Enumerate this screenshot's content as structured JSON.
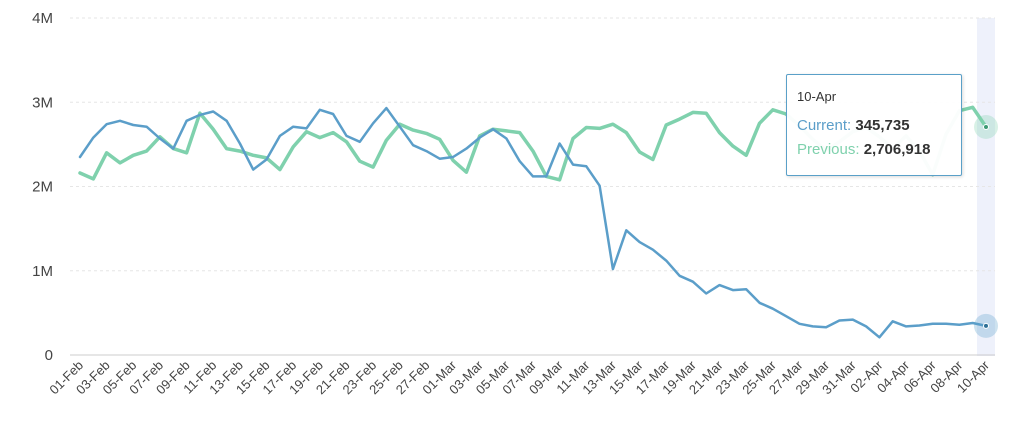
{
  "chart_data": {
    "type": "line",
    "x": [
      "01-Feb",
      "02-Feb",
      "03-Feb",
      "04-Feb",
      "05-Feb",
      "06-Feb",
      "07-Feb",
      "08-Feb",
      "09-Feb",
      "10-Feb",
      "11-Feb",
      "12-Feb",
      "13-Feb",
      "14-Feb",
      "15-Feb",
      "16-Feb",
      "17-Feb",
      "18-Feb",
      "19-Feb",
      "20-Feb",
      "21-Feb",
      "22-Feb",
      "23-Feb",
      "24-Feb",
      "25-Feb",
      "26-Feb",
      "27-Feb",
      "28-Feb",
      "01-Mar",
      "02-Mar",
      "03-Mar",
      "04-Mar",
      "05-Mar",
      "06-Mar",
      "07-Mar",
      "08-Mar",
      "09-Mar",
      "10-Mar",
      "11-Mar",
      "12-Mar",
      "13-Mar",
      "14-Mar",
      "15-Mar",
      "16-Mar",
      "17-Mar",
      "18-Mar",
      "19-Mar",
      "20-Mar",
      "21-Mar",
      "22-Mar",
      "23-Mar",
      "24-Mar",
      "25-Mar",
      "26-Mar",
      "27-Mar",
      "28-Mar",
      "29-Mar",
      "30-Mar",
      "31-Mar",
      "01-Apr",
      "02-Apr",
      "03-Apr",
      "04-Apr",
      "05-Apr",
      "06-Apr",
      "07-Apr",
      "08-Apr",
      "09-Apr",
      "10-Apr"
    ],
    "xticks": [
      "01-Feb",
      "03-Feb",
      "05-Feb",
      "07-Feb",
      "09-Feb",
      "11-Feb",
      "13-Feb",
      "15-Feb",
      "17-Feb",
      "19-Feb",
      "21-Feb",
      "23-Feb",
      "25-Feb",
      "27-Feb",
      "01-Mar",
      "03-Mar",
      "05-Mar",
      "07-Mar",
      "09-Mar",
      "11-Mar",
      "13-Mar",
      "15-Mar",
      "17-Mar",
      "19-Mar",
      "21-Mar",
      "23-Mar",
      "25-Mar",
      "27-Mar",
      "29-Mar",
      "31-Mar",
      "02-Apr",
      "04-Apr",
      "06-Apr",
      "08-Apr",
      "10-Apr"
    ],
    "yticks": [
      {
        "value": 0,
        "label": "0"
      },
      {
        "value": 1000000,
        "label": "1M"
      },
      {
        "value": 2000000,
        "label": "2M"
      },
      {
        "value": 3000000,
        "label": "3M"
      },
      {
        "value": 4000000,
        "label": "4M"
      }
    ],
    "ylim": [
      0,
      4000000
    ],
    "grid": true,
    "series": [
      {
        "name": "Current",
        "color": "#5b9ec9",
        "values": [
          2350000,
          2580000,
          2740000,
          2780000,
          2730000,
          2710000,
          2570000,
          2450000,
          2780000,
          2850000,
          2890000,
          2780000,
          2510000,
          2200000,
          2320000,
          2600000,
          2710000,
          2690000,
          2910000,
          2860000,
          2600000,
          2530000,
          2750000,
          2930000,
          2710000,
          2490000,
          2420000,
          2330000,
          2350000,
          2450000,
          2580000,
          2680000,
          2570000,
          2300000,
          2120000,
          2120000,
          2510000,
          2260000,
          2240000,
          2010000,
          1020000,
          1480000,
          1340000,
          1250000,
          1120000,
          940000,
          870000,
          730000,
          830000,
          770000,
          780000,
          620000,
          550000,
          460000,
          370000,
          340000,
          330000,
          410000,
          420000,
          340000,
          210000,
          400000,
          340000,
          350000,
          370000,
          370000,
          360000,
          380000,
          345735
        ]
      },
      {
        "name": "Previous",
        "color": "#7fd1ad",
        "values": [
          2160000,
          2090000,
          2400000,
          2280000,
          2370000,
          2420000,
          2590000,
          2450000,
          2400000,
          2870000,
          2680000,
          2450000,
          2420000,
          2370000,
          2340000,
          2200000,
          2470000,
          2650000,
          2580000,
          2640000,
          2530000,
          2300000,
          2230000,
          2550000,
          2740000,
          2670000,
          2630000,
          2560000,
          2310000,
          2170000,
          2600000,
          2680000,
          2660000,
          2640000,
          2420000,
          2120000,
          2080000,
          2570000,
          2700000,
          2690000,
          2740000,
          2640000,
          2410000,
          2320000,
          2730000,
          2800000,
          2880000,
          2870000,
          2640000,
          2480000,
          2370000,
          2750000,
          2910000,
          2860000,
          2720000,
          2560000,
          2430000,
          2530000,
          2650000,
          2700000,
          2590000,
          2450000,
          2600000,
          2420000,
          2140000,
          2620000,
          2900000,
          2940000,
          2706918
        ]
      }
    ],
    "hover_index": 68
  },
  "tooltip": {
    "date": "10-Apr",
    "current_label": "Current:",
    "current_value": "345,735",
    "previous_label": "Previous:",
    "previous_value": "2,706,918"
  }
}
